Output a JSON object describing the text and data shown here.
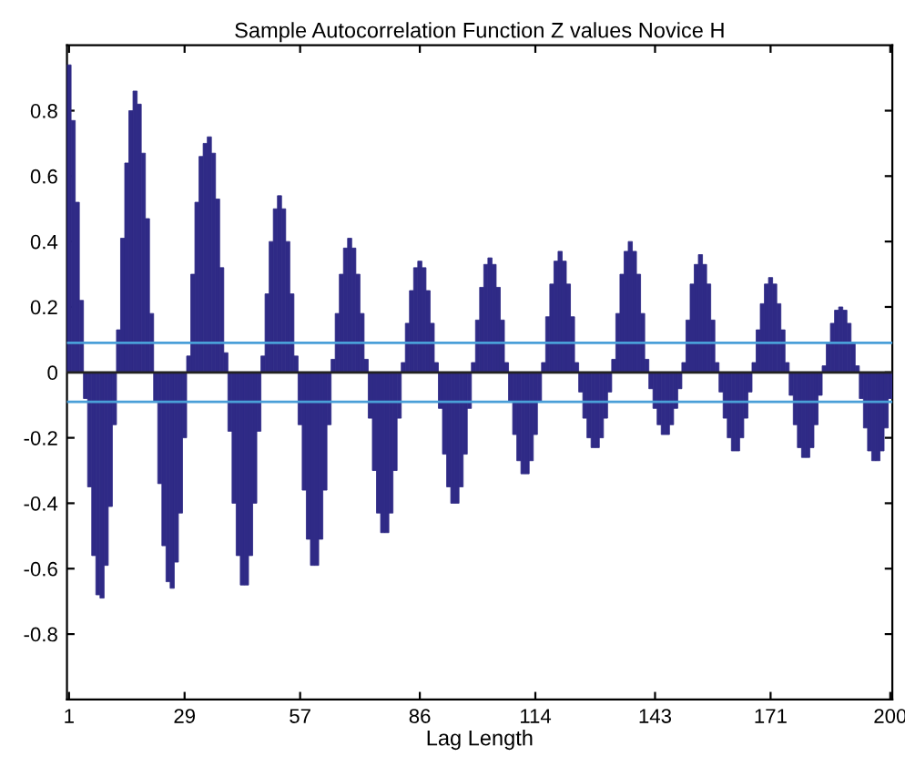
{
  "chart_data": {
    "type": "bar",
    "title": "Sample Autocorrelation Function Z values Novice H",
    "xlabel": "Lag Length",
    "x": [
      1,
      2,
      3,
      4,
      5,
      6,
      7,
      8,
      9,
      10,
      11,
      12,
      13,
      14,
      15,
      16,
      17,
      18,
      19,
      20,
      21,
      22,
      23,
      24,
      25,
      26,
      27,
      28,
      29,
      30,
      31,
      32,
      33,
      34,
      35,
      36,
      37,
      38,
      39,
      40,
      41,
      42,
      43,
      44,
      45,
      46,
      47,
      48,
      49,
      50,
      51,
      52,
      53,
      54,
      55,
      56,
      57,
      58,
      59,
      60,
      61,
      62,
      63,
      64,
      65,
      66,
      67,
      68,
      69,
      70,
      71,
      72,
      73,
      74,
      75,
      76,
      77,
      78,
      79,
      80,
      81,
      82,
      83,
      84,
      85,
      86,
      87,
      88,
      89,
      90,
      91,
      92,
      93,
      94,
      95,
      96,
      97,
      98,
      99,
      100,
      101,
      102,
      103,
      104,
      105,
      106,
      107,
      108,
      109,
      110,
      111,
      112,
      113,
      114,
      115,
      116,
      117,
      118,
      119,
      120,
      121,
      122,
      123,
      124,
      125,
      126,
      127,
      128,
      129,
      130,
      131,
      132,
      133,
      134,
      135,
      136,
      137,
      138,
      139,
      140,
      141,
      142,
      143,
      144,
      145,
      146,
      147,
      148,
      149,
      150,
      151,
      152,
      153,
      154,
      155,
      156,
      157,
      158,
      159,
      160,
      161,
      162,
      163,
      164,
      165,
      166,
      167,
      168,
      169,
      170,
      171,
      172,
      173,
      174,
      175,
      176,
      177,
      178,
      179,
      180,
      181,
      182,
      183,
      184,
      185,
      186,
      187,
      188,
      189,
      190,
      191,
      192,
      193,
      194,
      195,
      196,
      197,
      198,
      199,
      200
    ],
    "series": [
      {
        "color": "#2f2a86",
        "values": [
          0.94,
          0.77,
          0.52,
          0.22,
          -0.08,
          -0.35,
          -0.56,
          -0.68,
          -0.69,
          -0.59,
          -0.41,
          -0.16,
          0.13,
          0.41,
          0.64,
          0.8,
          0.86,
          0.82,
          0.67,
          0.47,
          0.18,
          -0.09,
          -0.34,
          -0.53,
          -0.64,
          -0.66,
          -0.58,
          -0.43,
          -0.2,
          0.05,
          0.3,
          0.52,
          0.66,
          0.7,
          0.72,
          0.67,
          0.53,
          0.32,
          0.06,
          -0.18,
          -0.4,
          -0.56,
          -0.65,
          -0.65,
          -0.56,
          -0.4,
          -0.18,
          0.05,
          0.24,
          0.4,
          0.5,
          0.54,
          0.5,
          0.4,
          0.24,
          0.05,
          -0.16,
          -0.36,
          -0.51,
          -0.59,
          -0.59,
          -0.51,
          -0.36,
          -0.16,
          0.04,
          0.18,
          0.3,
          0.38,
          0.41,
          0.38,
          0.3,
          0.18,
          0.04,
          -0.14,
          -0.3,
          -0.43,
          -0.49,
          -0.49,
          -0.43,
          -0.3,
          -0.14,
          0.03,
          0.15,
          0.25,
          0.32,
          0.34,
          0.32,
          0.25,
          0.15,
          0.03,
          -0.11,
          -0.25,
          -0.35,
          -0.4,
          -0.4,
          -0.35,
          -0.25,
          -0.11,
          0.03,
          0.16,
          0.26,
          0.33,
          0.35,
          0.33,
          0.26,
          0.16,
          0.03,
          -0.09,
          -0.19,
          -0.27,
          -0.31,
          -0.31,
          -0.27,
          -0.19,
          -0.09,
          0.03,
          0.17,
          0.27,
          0.34,
          0.37,
          0.34,
          0.27,
          0.17,
          0.03,
          -0.06,
          -0.14,
          -0.2,
          -0.23,
          -0.23,
          -0.2,
          -0.14,
          -0.06,
          0.04,
          0.18,
          0.3,
          0.37,
          0.4,
          0.37,
          0.3,
          0.18,
          0.04,
          -0.05,
          -0.11,
          -0.16,
          -0.19,
          -0.19,
          -0.16,
          -0.11,
          -0.05,
          0.03,
          0.16,
          0.27,
          0.33,
          0.36,
          0.33,
          0.27,
          0.16,
          0.03,
          -0.06,
          -0.14,
          -0.2,
          -0.24,
          -0.24,
          -0.2,
          -0.14,
          -0.06,
          0.03,
          0.13,
          0.21,
          0.27,
          0.29,
          0.27,
          0.21,
          0.13,
          0.03,
          -0.07,
          -0.16,
          -0.23,
          -0.26,
          -0.26,
          -0.23,
          -0.16,
          -0.07,
          0.02,
          0.09,
          0.15,
          0.19,
          0.2,
          0.19,
          0.15,
          0.09,
          0.02,
          -0.08,
          -0.17,
          -0.24,
          -0.27,
          -0.27,
          -0.24,
          -0.17,
          -0.08
        ]
      }
    ],
    "xlim": [
      0.5,
      200.5
    ],
    "xticks": [
      1,
      29,
      57,
      86,
      114,
      143,
      171,
      200
    ],
    "ylim": [
      -1,
      1
    ],
    "yticks": [
      -0.8,
      -0.6,
      -0.4,
      -0.2,
      0,
      0.2,
      0.4,
      0.6,
      0.8
    ],
    "ref_lines": [
      {
        "axis": "y",
        "value": 0.09,
        "color": "#4a9fd8"
      },
      {
        "axis": "y",
        "value": -0.09,
        "color": "#4a9fd8"
      },
      {
        "axis": "y",
        "value": 0,
        "color": "#222222"
      }
    ],
    "grid": false,
    "legend": false
  }
}
